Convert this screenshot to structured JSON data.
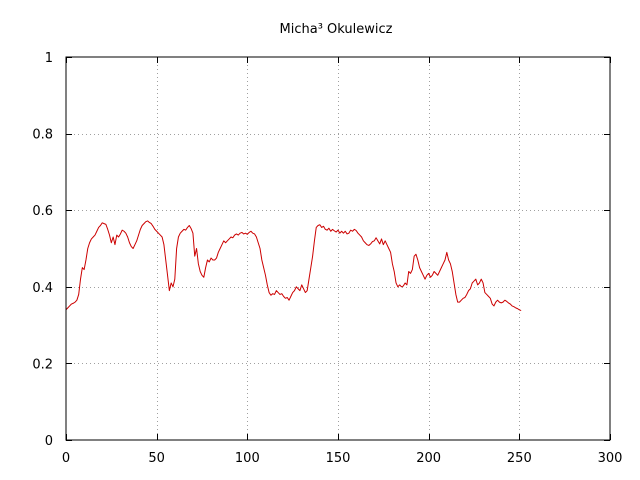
{
  "chart_data": {
    "type": "line",
    "title": "Micha³ Okulewicz",
    "xlabel": "",
    "ylabel": "",
    "xlim": [
      0,
      300
    ],
    "ylim": [
      0,
      1
    ],
    "x_ticks": [
      "0",
      "50",
      "100",
      "150",
      "200",
      "250",
      "300"
    ],
    "y_ticks": [
      "0",
      "0.2",
      "0.4",
      "0.6",
      "0.8",
      "1"
    ],
    "grid": true,
    "legend": "none",
    "series": [
      {
        "color": "#cc0000",
        "points": [
          [
            0,
            0.34
          ],
          [
            1,
            0.345
          ],
          [
            2,
            0.35
          ],
          [
            3,
            0.355
          ],
          [
            4,
            0.357
          ],
          [
            5,
            0.36
          ],
          [
            6,
            0.365
          ],
          [
            7,
            0.38
          ],
          [
            8,
            0.42
          ],
          [
            9,
            0.45
          ],
          [
            10,
            0.445
          ],
          [
            11,
            0.47
          ],
          [
            12,
            0.5
          ],
          [
            13,
            0.515
          ],
          [
            14,
            0.525
          ],
          [
            15,
            0.53
          ],
          [
            16,
            0.535
          ],
          [
            17,
            0.545
          ],
          [
            18,
            0.555
          ],
          [
            19,
            0.56
          ],
          [
            20,
            0.567
          ],
          [
            21,
            0.565
          ],
          [
            22,
            0.563
          ],
          [
            23,
            0.55
          ],
          [
            24,
            0.535
          ],
          [
            25,
            0.515
          ],
          [
            26,
            0.53
          ],
          [
            27,
            0.51
          ],
          [
            28,
            0.535
          ],
          [
            29,
            0.53
          ],
          [
            30,
            0.538
          ],
          [
            31,
            0.548
          ],
          [
            32,
            0.545
          ],
          [
            33,
            0.54
          ],
          [
            34,
            0.53
          ],
          [
            35,
            0.515
          ],
          [
            36,
            0.505
          ],
          [
            37,
            0.5
          ],
          [
            38,
            0.51
          ],
          [
            39,
            0.52
          ],
          [
            40,
            0.535
          ],
          [
            41,
            0.55
          ],
          [
            42,
            0.56
          ],
          [
            43,
            0.565
          ],
          [
            44,
            0.57
          ],
          [
            45,
            0.572
          ],
          [
            46,
            0.568
          ],
          [
            47,
            0.565
          ],
          [
            48,
            0.558
          ],
          [
            49,
            0.55
          ],
          [
            50,
            0.545
          ],
          [
            51,
            0.54
          ],
          [
            52,
            0.535
          ],
          [
            53,
            0.53
          ],
          [
            54,
            0.51
          ],
          [
            55,
            0.47
          ],
          [
            56,
            0.43
          ],
          [
            57,
            0.39
          ],
          [
            58,
            0.41
          ],
          [
            59,
            0.4
          ],
          [
            60,
            0.42
          ],
          [
            61,
            0.5
          ],
          [
            62,
            0.53
          ],
          [
            63,
            0.54
          ],
          [
            64,
            0.545
          ],
          [
            65,
            0.55
          ],
          [
            66,
            0.548
          ],
          [
            67,
            0.555
          ],
          [
            68,
            0.56
          ],
          [
            69,
            0.552
          ],
          [
            70,
            0.54
          ],
          [
            71,
            0.48
          ],
          [
            72,
            0.5
          ],
          [
            73,
            0.46
          ],
          [
            74,
            0.44
          ],
          [
            75,
            0.43
          ],
          [
            76,
            0.425
          ],
          [
            77,
            0.45
          ],
          [
            78,
            0.47
          ],
          [
            79,
            0.465
          ],
          [
            80,
            0.475
          ],
          [
            81,
            0.47
          ],
          [
            82,
            0.47
          ],
          [
            83,
            0.475
          ],
          [
            84,
            0.49
          ],
          [
            85,
            0.5
          ],
          [
            86,
            0.51
          ],
          [
            87,
            0.52
          ],
          [
            88,
            0.515
          ],
          [
            89,
            0.52
          ],
          [
            90,
            0.525
          ],
          [
            91,
            0.53
          ],
          [
            92,
            0.528
          ],
          [
            93,
            0.535
          ],
          [
            94,
            0.538
          ],
          [
            95,
            0.535
          ],
          [
            96,
            0.54
          ],
          [
            97,
            0.542
          ],
          [
            98,
            0.538
          ],
          [
            99,
            0.54
          ],
          [
            100,
            0.537
          ],
          [
            101,
            0.542
          ],
          [
            102,
            0.545
          ],
          [
            103,
            0.54
          ],
          [
            104,
            0.538
          ],
          [
            105,
            0.53
          ],
          [
            106,
            0.515
          ],
          [
            107,
            0.5
          ],
          [
            108,
            0.47
          ],
          [
            109,
            0.45
          ],
          [
            110,
            0.43
          ],
          [
            111,
            0.405
          ],
          [
            112,
            0.385
          ],
          [
            113,
            0.378
          ],
          [
            114,
            0.382
          ],
          [
            115,
            0.38
          ],
          [
            116,
            0.39
          ],
          [
            117,
            0.385
          ],
          [
            118,
            0.38
          ],
          [
            119,
            0.382
          ],
          [
            120,
            0.375
          ],
          [
            121,
            0.37
          ],
          [
            122,
            0.372
          ],
          [
            123,
            0.365
          ],
          [
            124,
            0.375
          ],
          [
            125,
            0.385
          ],
          [
            126,
            0.39
          ],
          [
            127,
            0.4
          ],
          [
            128,
            0.395
          ],
          [
            129,
            0.39
          ],
          [
            130,
            0.405
          ],
          [
            131,
            0.395
          ],
          [
            132,
            0.385
          ],
          [
            133,
            0.39
          ],
          [
            134,
            0.42
          ],
          [
            135,
            0.45
          ],
          [
            136,
            0.48
          ],
          [
            137,
            0.52
          ],
          [
            138,
            0.555
          ],
          [
            139,
            0.56
          ],
          [
            140,
            0.562
          ],
          [
            141,
            0.555
          ],
          [
            142,
            0.558
          ],
          [
            143,
            0.55
          ],
          [
            144,
            0.548
          ],
          [
            145,
            0.553
          ],
          [
            146,
            0.545
          ],
          [
            147,
            0.55
          ],
          [
            148,
            0.546
          ],
          [
            149,
            0.543
          ],
          [
            150,
            0.548
          ],
          [
            151,
            0.54
          ],
          [
            152,
            0.545
          ],
          [
            153,
            0.54
          ],
          [
            154,
            0.545
          ],
          [
            155,
            0.538
          ],
          [
            156,
            0.54
          ],
          [
            157,
            0.548
          ],
          [
            158,
            0.545
          ],
          [
            159,
            0.55
          ],
          [
            160,
            0.547
          ],
          [
            161,
            0.54
          ],
          [
            162,
            0.535
          ],
          [
            163,
            0.53
          ],
          [
            164,
            0.52
          ],
          [
            165,
            0.515
          ],
          [
            166,
            0.51
          ],
          [
            167,
            0.508
          ],
          [
            168,
            0.512
          ],
          [
            169,
            0.518
          ],
          [
            170,
            0.52
          ],
          [
            171,
            0.528
          ],
          [
            172,
            0.52
          ],
          [
            173,
            0.512
          ],
          [
            174,
            0.525
          ],
          [
            175,
            0.51
          ],
          [
            176,
            0.52
          ],
          [
            177,
            0.51
          ],
          [
            178,
            0.5
          ],
          [
            179,
            0.49
          ],
          [
            180,
            0.46
          ],
          [
            181,
            0.44
          ],
          [
            182,
            0.41
          ],
          [
            183,
            0.4
          ],
          [
            184,
            0.405
          ],
          [
            185,
            0.4
          ],
          [
            186,
            0.402
          ],
          [
            187,
            0.41
          ],
          [
            188,
            0.405
          ],
          [
            189,
            0.44
          ],
          [
            190,
            0.435
          ],
          [
            191,
            0.445
          ],
          [
            192,
            0.48
          ],
          [
            193,
            0.485
          ],
          [
            194,
            0.47
          ],
          [
            195,
            0.45
          ],
          [
            196,
            0.44
          ],
          [
            197,
            0.43
          ],
          [
            198,
            0.42
          ],
          [
            199,
            0.43
          ],
          [
            200,
            0.435
          ],
          [
            201,
            0.425
          ],
          [
            202,
            0.43
          ],
          [
            203,
            0.44
          ],
          [
            204,
            0.435
          ],
          [
            205,
            0.43
          ],
          [
            206,
            0.44
          ],
          [
            207,
            0.45
          ],
          [
            208,
            0.46
          ],
          [
            209,
            0.47
          ],
          [
            210,
            0.49
          ],
          [
            211,
            0.47
          ],
          [
            212,
            0.46
          ],
          [
            213,
            0.44
          ],
          [
            214,
            0.41
          ],
          [
            215,
            0.38
          ],
          [
            216,
            0.36
          ],
          [
            217,
            0.36
          ],
          [
            218,
            0.365
          ],
          [
            219,
            0.37
          ],
          [
            220,
            0.372
          ],
          [
            221,
            0.38
          ],
          [
            222,
            0.39
          ],
          [
            223,
            0.395
          ],
          [
            224,
            0.41
          ],
          [
            225,
            0.415
          ],
          [
            226,
            0.42
          ],
          [
            227,
            0.405
          ],
          [
            228,
            0.41
          ],
          [
            229,
            0.42
          ],
          [
            230,
            0.41
          ],
          [
            231,
            0.385
          ],
          [
            232,
            0.38
          ],
          [
            233,
            0.375
          ],
          [
            234,
            0.37
          ],
          [
            235,
            0.355
          ],
          [
            236,
            0.35
          ],
          [
            237,
            0.36
          ],
          [
            238,
            0.365
          ],
          [
            239,
            0.36
          ],
          [
            240,
            0.358
          ],
          [
            241,
            0.36
          ],
          [
            242,
            0.365
          ],
          [
            243,
            0.362
          ],
          [
            244,
            0.358
          ],
          [
            245,
            0.355
          ],
          [
            246,
            0.35
          ],
          [
            247,
            0.348
          ],
          [
            248,
            0.345
          ],
          [
            249,
            0.343
          ],
          [
            250,
            0.34
          ],
          [
            251,
            0.338
          ]
        ]
      }
    ]
  }
}
